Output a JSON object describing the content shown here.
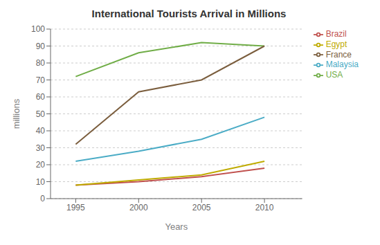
{
  "chart_data": {
    "type": "line",
    "title": "International Tourists Arrival in Millions",
    "xlabel": "Years",
    "ylabel": "millions",
    "x": [
      1995,
      2000,
      2005,
      2010
    ],
    "series": [
      {
        "name": "USA",
        "color": "#70AD47",
        "values": [
          72,
          86,
          92,
          90
        ]
      },
      {
        "name": "France",
        "color": "#7B5E3E",
        "values": [
          32,
          63,
          70,
          90
        ]
      },
      {
        "name": "Malaysia",
        "color": "#4BACC6",
        "values": [
          22,
          28,
          35,
          48
        ]
      },
      {
        "name": "Brazil",
        "color": "#C0504D",
        "values": [
          8,
          10,
          13,
          18
        ]
      },
      {
        "name": "Egypt",
        "color": "#BFAB00",
        "values": [
          8,
          11,
          14,
          22
        ]
      }
    ],
    "xlim": [
      1993,
      2013
    ],
    "xticks": [
      1995,
      2000,
      2005,
      2010
    ],
    "ylim": [
      0,
      100
    ],
    "yticks": [
      0,
      10,
      20,
      30,
      40,
      50,
      60,
      70,
      80,
      90,
      100
    ],
    "grid": true,
    "legend": "upper right"
  }
}
